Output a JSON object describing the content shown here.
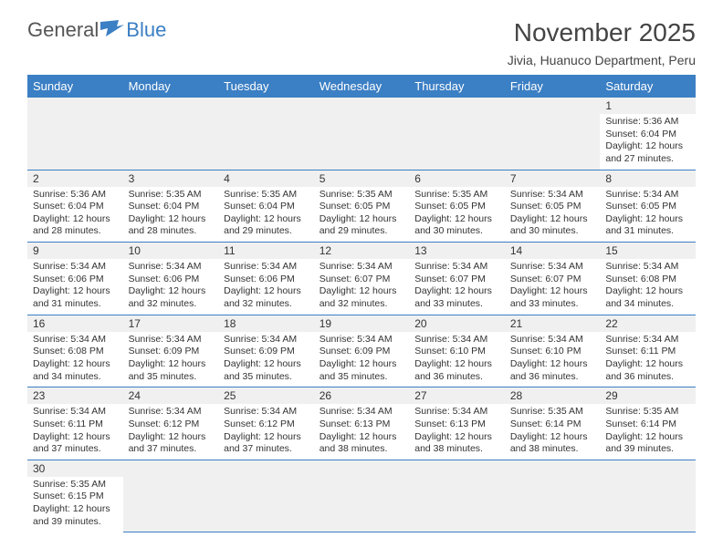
{
  "brand": {
    "part1": "General",
    "part2": "Blue"
  },
  "title": "November 2025",
  "subtitle": "Jivia, Huanuco Department, Peru",
  "columns": [
    "Sunday",
    "Monday",
    "Tuesday",
    "Wednesday",
    "Thursday",
    "Friday",
    "Saturday"
  ],
  "header_bg": "#3b7fc4",
  "header_fg": "#ffffff",
  "row_border": "#3b7fc4",
  "daybar_bg": "#f0f0f0",
  "body_font_size": 10.5,
  "title_font_size": 28,
  "subtitle_font_size": 14,
  "first_weekday_index": 6,
  "days": [
    {
      "n": 1,
      "sr": "5:36 AM",
      "ss": "6:04 PM",
      "dl": "12 hours and 27 minutes."
    },
    {
      "n": 2,
      "sr": "5:36 AM",
      "ss": "6:04 PM",
      "dl": "12 hours and 28 minutes."
    },
    {
      "n": 3,
      "sr": "5:35 AM",
      "ss": "6:04 PM",
      "dl": "12 hours and 28 minutes."
    },
    {
      "n": 4,
      "sr": "5:35 AM",
      "ss": "6:04 PM",
      "dl": "12 hours and 29 minutes."
    },
    {
      "n": 5,
      "sr": "5:35 AM",
      "ss": "6:05 PM",
      "dl": "12 hours and 29 minutes."
    },
    {
      "n": 6,
      "sr": "5:35 AM",
      "ss": "6:05 PM",
      "dl": "12 hours and 30 minutes."
    },
    {
      "n": 7,
      "sr": "5:34 AM",
      "ss": "6:05 PM",
      "dl": "12 hours and 30 minutes."
    },
    {
      "n": 8,
      "sr": "5:34 AM",
      "ss": "6:05 PM",
      "dl": "12 hours and 31 minutes."
    },
    {
      "n": 9,
      "sr": "5:34 AM",
      "ss": "6:06 PM",
      "dl": "12 hours and 31 minutes."
    },
    {
      "n": 10,
      "sr": "5:34 AM",
      "ss": "6:06 PM",
      "dl": "12 hours and 32 minutes."
    },
    {
      "n": 11,
      "sr": "5:34 AM",
      "ss": "6:06 PM",
      "dl": "12 hours and 32 minutes."
    },
    {
      "n": 12,
      "sr": "5:34 AM",
      "ss": "6:07 PM",
      "dl": "12 hours and 32 minutes."
    },
    {
      "n": 13,
      "sr": "5:34 AM",
      "ss": "6:07 PM",
      "dl": "12 hours and 33 minutes."
    },
    {
      "n": 14,
      "sr": "5:34 AM",
      "ss": "6:07 PM",
      "dl": "12 hours and 33 minutes."
    },
    {
      "n": 15,
      "sr": "5:34 AM",
      "ss": "6:08 PM",
      "dl": "12 hours and 34 minutes."
    },
    {
      "n": 16,
      "sr": "5:34 AM",
      "ss": "6:08 PM",
      "dl": "12 hours and 34 minutes."
    },
    {
      "n": 17,
      "sr": "5:34 AM",
      "ss": "6:09 PM",
      "dl": "12 hours and 35 minutes."
    },
    {
      "n": 18,
      "sr": "5:34 AM",
      "ss": "6:09 PM",
      "dl": "12 hours and 35 minutes."
    },
    {
      "n": 19,
      "sr": "5:34 AM",
      "ss": "6:09 PM",
      "dl": "12 hours and 35 minutes."
    },
    {
      "n": 20,
      "sr": "5:34 AM",
      "ss": "6:10 PM",
      "dl": "12 hours and 36 minutes."
    },
    {
      "n": 21,
      "sr": "5:34 AM",
      "ss": "6:10 PM",
      "dl": "12 hours and 36 minutes."
    },
    {
      "n": 22,
      "sr": "5:34 AM",
      "ss": "6:11 PM",
      "dl": "12 hours and 36 minutes."
    },
    {
      "n": 23,
      "sr": "5:34 AM",
      "ss": "6:11 PM",
      "dl": "12 hours and 37 minutes."
    },
    {
      "n": 24,
      "sr": "5:34 AM",
      "ss": "6:12 PM",
      "dl": "12 hours and 37 minutes."
    },
    {
      "n": 25,
      "sr": "5:34 AM",
      "ss": "6:12 PM",
      "dl": "12 hours and 37 minutes."
    },
    {
      "n": 26,
      "sr": "5:34 AM",
      "ss": "6:13 PM",
      "dl": "12 hours and 38 minutes."
    },
    {
      "n": 27,
      "sr": "5:34 AM",
      "ss": "6:13 PM",
      "dl": "12 hours and 38 minutes."
    },
    {
      "n": 28,
      "sr": "5:35 AM",
      "ss": "6:14 PM",
      "dl": "12 hours and 38 minutes."
    },
    {
      "n": 29,
      "sr": "5:35 AM",
      "ss": "6:14 PM",
      "dl": "12 hours and 39 minutes."
    },
    {
      "n": 30,
      "sr": "5:35 AM",
      "ss": "6:15 PM",
      "dl": "12 hours and 39 minutes."
    }
  ],
  "labels": {
    "sunrise": "Sunrise:",
    "sunset": "Sunset:",
    "daylight": "Daylight:"
  }
}
